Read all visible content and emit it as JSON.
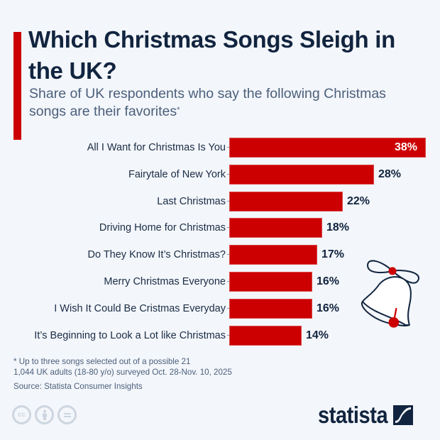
{
  "header": {
    "title": "Which Christmas Songs Sleigh in the UK?",
    "subtitle": "Share of UK respondents who say the following Christmas songs are their favorites",
    "subtitle_marker": "*"
  },
  "chart_data": {
    "type": "bar",
    "orientation": "horizontal",
    "title": "Which Christmas Songs Sleigh in the UK?",
    "subtitle": "Share of UK respondents who say the following Christmas songs are their favorites*",
    "xlabel": "",
    "ylabel": "",
    "unit": "%",
    "categories": [
      "All I Want for Christmas Is You",
      "Fairytale of New York",
      "Last Christmas",
      "Driving Home for Christmas",
      "Do They Know It’s Christmas?",
      "Merry Christmas Everyone",
      "I Wish It Could Be Cristmas Everyday",
      "It’s Beginning to Look a Lot like Christmas"
    ],
    "values": [
      38,
      28,
      22,
      18,
      17,
      16,
      16,
      14
    ],
    "value_labels": [
      "38%",
      "28%",
      "22%",
      "18%",
      "17%",
      "16%",
      "16%",
      "14%"
    ],
    "xlim": [
      0,
      38
    ],
    "grid": false,
    "legend": "none",
    "bar_color": "#cc0000"
  },
  "bars": [
    {
      "label": "All I Want for Christmas Is You",
      "value": 38,
      "display": "38%"
    },
    {
      "label": "Fairytale of New York",
      "value": 28,
      "display": "28%"
    },
    {
      "label": "Last Christmas",
      "value": 22,
      "display": "22%"
    },
    {
      "label": "Driving Home for Christmas",
      "value": 18,
      "display": "18%"
    },
    {
      "label": "Do They Know It’s Christmas?",
      "value": 17,
      "display": "17%"
    },
    {
      "label": "Merry Christmas Everyone",
      "value": 16,
      "display": "16%"
    },
    {
      "label": "I Wish It Could Be Cristmas Everyday",
      "value": 16,
      "display": "16%"
    },
    {
      "label": "It’s Beginning to Look a Lot like Christmas",
      "value": 14,
      "display": "14%"
    }
  ],
  "footer": {
    "note1": "* Up to three songs selected out of a possible 21",
    "note2": "1,044 UK adults (18-80 y/o) surveyed Oct. 28-Nov. 10, 2025",
    "source": "Source: Statista Consumer Insights",
    "license_icons": [
      "cc-icon",
      "attribution-icon",
      "no-derivatives-icon"
    ],
    "license_cc_text": "cc",
    "logo_text": "statista"
  },
  "colors": {
    "accent": "#cc0000",
    "title": "#11243f",
    "subtitle": "#4b5f7c",
    "background": "#f3f6fa"
  }
}
